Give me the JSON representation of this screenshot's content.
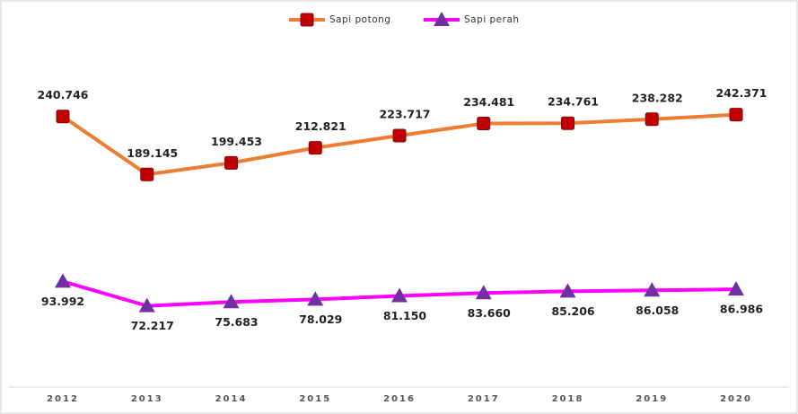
{
  "chart_data": {
    "type": "line",
    "categories": [
      "2012",
      "2013",
      "2014",
      "2015",
      "2016",
      "2017",
      "2018",
      "2019",
      "2020"
    ],
    "series": [
      {
        "name": "Sapi potong",
        "color": "#ed7d31",
        "marker_color": "#c00000",
        "marker": "square",
        "values": [
          240746,
          189145,
          199453,
          212821,
          223717,
          234481,
          234761,
          238282,
          242371
        ],
        "value_labels": [
          "240.746",
          "189.145",
          "199.453",
          "212.821",
          "223.717",
          "234.481",
          "234.761",
          "238.282",
          "242.371"
        ]
      },
      {
        "name": "Sapi perah",
        "color": "#ff00ff",
        "marker_color": "#7030a0",
        "marker": "triangle",
        "values": [
          93992,
          72217,
          75683,
          78029,
          81150,
          83660,
          85206,
          86058,
          86986
        ],
        "value_labels": [
          "93.992",
          "72.217",
          "75.683",
          "78.029",
          "81.150",
          "83.660",
          "85.206",
          "86.058",
          "86.986"
        ]
      }
    ],
    "ylim": [
      0,
      330000
    ],
    "legend": "top"
  }
}
